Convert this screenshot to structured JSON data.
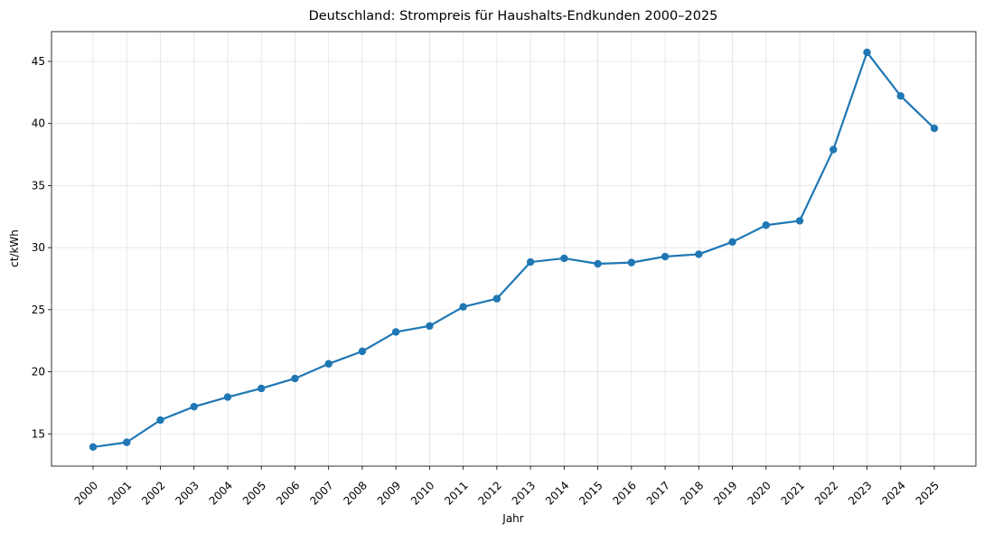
{
  "chart_data": {
    "type": "line",
    "title": "Deutschland: Strompreis für Haushalts-Endkunden 2000–2025",
    "xlabel": "Jahr",
    "ylabel": "ct/kWh",
    "ylim": [
      12.4,
      47.4
    ],
    "yticks": [
      15,
      20,
      25,
      30,
      35,
      40,
      45
    ],
    "grid": true,
    "series_color": "#1f77b4",
    "categories": [
      "2000",
      "2001",
      "2002",
      "2003",
      "2004",
      "2005",
      "2006",
      "2007",
      "2008",
      "2009",
      "2010",
      "2011",
      "2012",
      "2013",
      "2014",
      "2015",
      "2016",
      "2017",
      "2018",
      "2019",
      "2020",
      "2021",
      "2022",
      "2023",
      "2024",
      "2025"
    ],
    "series": [
      {
        "name": "Strompreis",
        "values": [
          13.94,
          14.32,
          16.11,
          17.19,
          17.96,
          18.66,
          19.46,
          20.64,
          21.65,
          23.21,
          23.69,
          25.23,
          25.89,
          28.84,
          29.14,
          28.7,
          28.8,
          29.28,
          29.47,
          30.46,
          31.81,
          32.16,
          37.9,
          45.73,
          42.22,
          39.61
        ]
      }
    ]
  }
}
